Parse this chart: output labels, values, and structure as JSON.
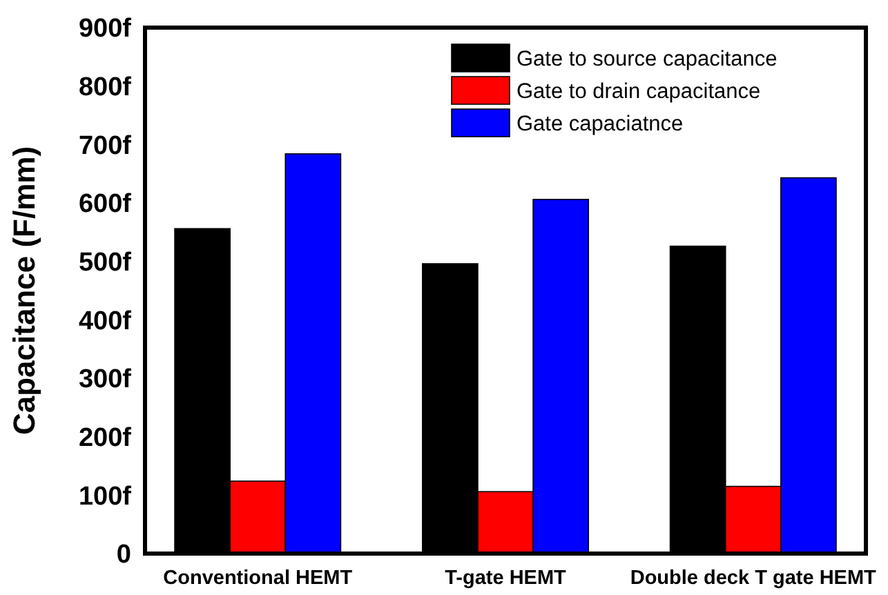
{
  "chart_data": {
    "type": "bar",
    "ylabel": "Capacitance (F/mm)",
    "categories": [
      "Conventional HEMT",
      "T-gate HEMT",
      "Double deck T gate HEMT"
    ],
    "series": [
      {
        "name": "Gate to source capacitance",
        "color": "#000000",
        "values": [
          556,
          496,
          526
        ]
      },
      {
        "name": "Gate to drain capacitance",
        "color": "#ff0000",
        "values": [
          124,
          106,
          115
        ]
      },
      {
        "name": "Gate capaciatnce",
        "color": "#0000ff",
        "values": [
          684,
          606,
          643
        ]
      }
    ],
    "ylim": [
      0,
      900
    ],
    "yticks": [
      0,
      {
        "value": 100,
        "label": "100f"
      },
      {
        "value": 200,
        "label": "200f"
      },
      {
        "value": 300,
        "label": "300f"
      },
      {
        "value": 400,
        "label": "400f"
      },
      {
        "value": 500,
        "label": "500f"
      },
      {
        "value": 600,
        "label": "600f"
      },
      {
        "value": 700,
        "label": "700f"
      },
      {
        "value": 800,
        "label": "800f"
      },
      {
        "value": 900,
        "label": "900f"
      }
    ],
    "grid": false,
    "legend": "top right"
  }
}
